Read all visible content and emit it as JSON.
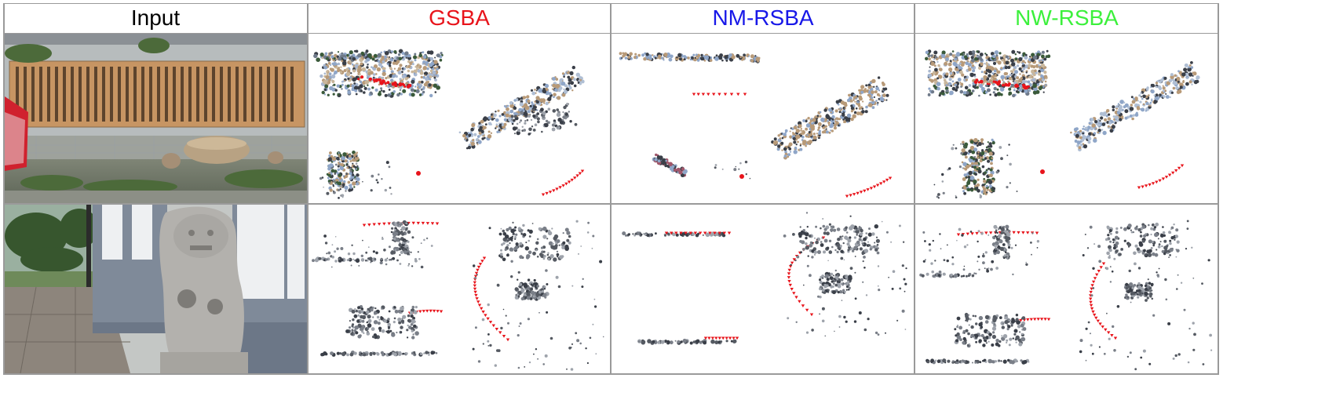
{
  "table": {
    "headers": [
      {
        "label": "Input",
        "color": "#000000"
      },
      {
        "label": "GSBA",
        "color": "#e8141b"
      },
      {
        "label": "NM-RSBA",
        "color": "#1818e8"
      },
      {
        "label": "NW-RSBA",
        "color": "#3cf03c"
      }
    ],
    "rows": [
      {
        "scene": "wall-with-inscription",
        "input_image": "photo of a stone wall with a carved inscription panel, rocks and weeds in front"
      },
      {
        "scene": "stone-lion-statue",
        "input_image": "photo of a stone lion statue beside a grey pillar"
      }
    ]
  },
  "colors": {
    "camera_trajectory": "#e8141b",
    "grid": "#9a9a9a",
    "points_dark": "#3a3f48",
    "points_blue": "#8fa6c8",
    "points_tan": "#b89a78",
    "points_green": "#3a5a3a"
  }
}
